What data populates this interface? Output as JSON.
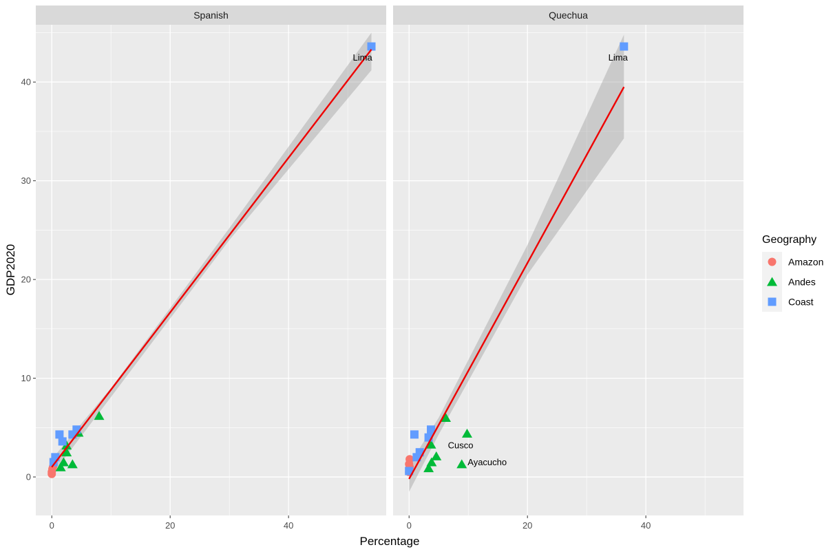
{
  "chart_data": {
    "type": "scatter",
    "xlabel": "Percentage",
    "ylabel": "GDP2020",
    "xlim": [
      -2.7,
      56.5
    ],
    "ylim": [
      -3.9,
      45.8
    ],
    "x_ticks": [
      0,
      20,
      40
    ],
    "y_ticks": [
      0,
      10,
      20,
      30,
      40
    ],
    "grid": true,
    "legend": {
      "title": "Geography",
      "position": "right",
      "entries": [
        {
          "label": "Amazon",
          "shape": "circle",
          "color": "#F8766D"
        },
        {
          "label": "Andes",
          "shape": "triangle",
          "color": "#00BA38"
        },
        {
          "label": "Coast",
          "shape": "square",
          "color": "#619CFF"
        }
      ]
    },
    "colors": {
      "Amazon": "#F8766D",
      "Andes": "#00BA38",
      "Coast": "#619CFF",
      "fit_line": "#EE0000",
      "ribbon": "#999999"
    },
    "panels": [
      {
        "facet": "Spanish",
        "fit": {
          "x": [
            0,
            54
          ],
          "y": [
            1.0,
            43.3
          ]
        },
        "ribbon": [
          [
            0,
            0.2,
            1.8
          ],
          [
            10,
            8.1,
            9.0
          ],
          [
            30,
            24.0,
            25.2
          ],
          [
            54,
            41.2,
            45.0
          ]
        ],
        "points": [
          {
            "group": "Amazon",
            "x": 0.0,
            "y": 0.5
          },
          {
            "group": "Amazon",
            "x": 0.1,
            "y": 0.8
          },
          {
            "group": "Amazon",
            "x": 0.2,
            "y": 1.0
          },
          {
            "group": "Amazon",
            "x": 0.0,
            "y": 0.3
          },
          {
            "group": "Andes",
            "x": 1.5,
            "y": 1.0
          },
          {
            "group": "Andes",
            "x": 2.0,
            "y": 1.5
          },
          {
            "group": "Andes",
            "x": 2.5,
            "y": 2.5
          },
          {
            "group": "Andes",
            "x": 3.5,
            "y": 1.3
          },
          {
            "group": "Andes",
            "x": 2.5,
            "y": 3.2
          },
          {
            "group": "Andes",
            "x": 4.5,
            "y": 4.5
          },
          {
            "group": "Andes",
            "x": 8.0,
            "y": 6.2
          },
          {
            "group": "Coast",
            "x": 0.3,
            "y": 1.5
          },
          {
            "group": "Coast",
            "x": 0.6,
            "y": 2.0
          },
          {
            "group": "Coast",
            "x": 1.3,
            "y": 4.3
          },
          {
            "group": "Coast",
            "x": 1.8,
            "y": 3.6
          },
          {
            "group": "Coast",
            "x": 3.5,
            "y": 4.3
          },
          {
            "group": "Coast",
            "x": 4.2,
            "y": 4.8
          },
          {
            "group": "Coast",
            "x": 54.0,
            "y": 43.6
          }
        ],
        "labels": [
          {
            "text": "Lima",
            "x": 52.5,
            "y": 42.5
          }
        ]
      },
      {
        "facet": "Quechua",
        "fit": {
          "x": [
            0,
            36.3
          ],
          "y": [
            -0.2,
            39.5
          ]
        },
        "ribbon": [
          [
            0,
            -1.5,
            1.2
          ],
          [
            5,
            4.3,
            6.0
          ],
          [
            20,
            20.5,
            23.5
          ],
          [
            36.3,
            34.3,
            44.8
          ]
        ],
        "points": [
          {
            "group": "Amazon",
            "x": 0.0,
            "y": 0.5
          },
          {
            "group": "Amazon",
            "x": 0.1,
            "y": 1.0
          },
          {
            "group": "Amazon",
            "x": 0.0,
            "y": 1.3
          },
          {
            "group": "Amazon",
            "x": 0.1,
            "y": 1.8
          },
          {
            "group": "Andes",
            "x": 3.3,
            "y": 0.9
          },
          {
            "group": "Andes",
            "x": 3.8,
            "y": 1.5
          },
          {
            "group": "Andes",
            "x": 4.6,
            "y": 2.1
          },
          {
            "group": "Andes",
            "x": 3.7,
            "y": 3.3
          },
          {
            "group": "Andes",
            "x": 6.2,
            "y": 6.0
          },
          {
            "group": "Andes",
            "x": 8.9,
            "y": 1.3
          },
          {
            "group": "Andes",
            "x": 9.8,
            "y": 4.4
          },
          {
            "group": "Coast",
            "x": 0.0,
            "y": 0.6
          },
          {
            "group": "Coast",
            "x": 0.9,
            "y": 4.3
          },
          {
            "group": "Coast",
            "x": 1.3,
            "y": 2.0
          },
          {
            "group": "Coast",
            "x": 1.8,
            "y": 2.5
          },
          {
            "group": "Coast",
            "x": 3.3,
            "y": 4.0
          },
          {
            "group": "Coast",
            "x": 3.7,
            "y": 4.8
          },
          {
            "group": "Coast",
            "x": 36.3,
            "y": 43.6
          }
        ],
        "labels": [
          {
            "text": "Lima",
            "x": 35.3,
            "y": 42.5
          },
          {
            "text": "Cusco",
            "x": 8.7,
            "y": 3.2
          },
          {
            "text": "Ayacucho",
            "x": 13.2,
            "y": 1.5
          }
        ]
      }
    ]
  }
}
